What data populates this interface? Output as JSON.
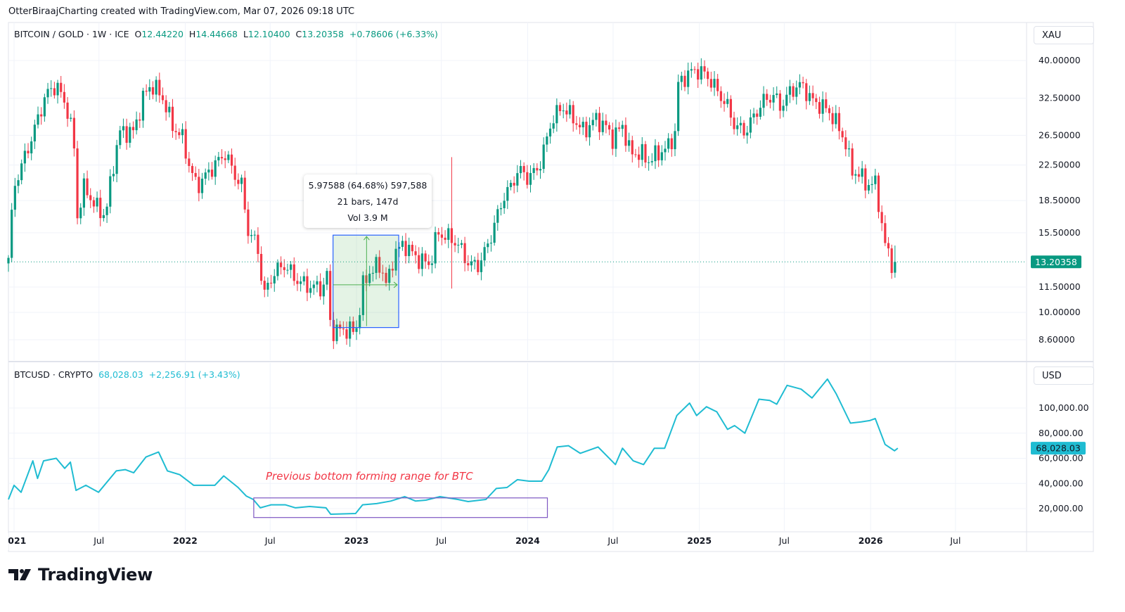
{
  "attribution": "OtterBiraajCharting created with TradingView.com, Mar 07, 2026 09:18 UTC",
  "main_pane": {
    "symbol": "BITCOIN / GOLD · 1W · ICE",
    "open_label": "O",
    "open": "12.44220",
    "high_label": "H",
    "high": "14.44668",
    "low_label": "L",
    "low": "12.10400",
    "close_label": "C",
    "close": "13.20358",
    "change": "+0.78606 (+6.33%)",
    "unit": "XAU",
    "last_price_label": "13.20358"
  },
  "sub_pane": {
    "symbol": "BTCUSD · CRYPTO",
    "value": "68,028.03",
    "change": "+2,256.91 (+3.43%)",
    "unit": "USD",
    "last_price_label": "68,028.03"
  },
  "measure_tooltip": {
    "line1": "5.97588 (64.68%) 597,588",
    "line2": "21 bars, 147d",
    "line3": "Vol 3.9 M"
  },
  "annotation": "Previous bottom forming range for BTC",
  "footer": {
    "brand": "TradingView"
  },
  "colors": {
    "up": "#089981",
    "down": "#f23645",
    "btc_line": "#1fbcd2",
    "measure_border": "#2962ff",
    "annotation_box": "#7e57c2"
  },
  "chart_data": [
    {
      "type": "candlestick",
      "title": "BITCOIN / GOLD · 1W · ICE",
      "scale": "log",
      "ylim": [
        8.2,
        42
      ],
      "y_ticks": [
        "40.00000",
        "32.50000",
        "26.50000",
        "22.50000",
        "18.50000",
        "15.50000",
        "11.50000",
        "10.00000",
        "8.60000"
      ],
      "last_bar": {
        "open": 12.4422,
        "high": 14.44668,
        "low": 12.104,
        "close": 13.20358
      },
      "close_path": [
        [
          "2020-12-20",
          13.5
        ],
        [
          "2021-01-01",
          20
        ],
        [
          "2021-02-07",
          26
        ],
        [
          "2021-03-09",
          33
        ],
        [
          "2021-04-01",
          35
        ],
        [
          "2021-04-23",
          31
        ],
        [
          "2021-05-08",
          26
        ],
        [
          "2021-05-16",
          17
        ],
        [
          "2021-05-31",
          20
        ],
        [
          "2021-06-22",
          18
        ],
        [
          "2021-07-15",
          17
        ],
        [
          "2021-07-30",
          22
        ],
        [
          "2021-08-14",
          27
        ],
        [
          "2021-09-13",
          27
        ],
        [
          "2021-10-05",
          33
        ],
        [
          "2021-10-20",
          35
        ],
        [
          "2021-11-12",
          33
        ],
        [
          "2021-12-04",
          28
        ],
        [
          "2021-12-27",
          26
        ],
        [
          "2022-01-11",
          22
        ],
        [
          "2022-01-26",
          20
        ],
        [
          "2022-02-25",
          22
        ],
        [
          "2022-03-27",
          24
        ],
        [
          "2022-04-19",
          21
        ],
        [
          "2022-05-04",
          20
        ],
        [
          "2022-05-11",
          16
        ],
        [
          "2022-06-03",
          14.5
        ],
        [
          "2022-06-18",
          11
        ],
        [
          "2022-07-10",
          12.5
        ],
        [
          "2022-08-02",
          13
        ],
        [
          "2022-08-24",
          12
        ],
        [
          "2022-09-23",
          11.5
        ],
        [
          "2022-10-23",
          11.5
        ],
        [
          "2022-10-31",
          12.5
        ],
        [
          "2022-11-07",
          9
        ],
        [
          "2022-12-07",
          9.1
        ],
        [
          "2022-12-30",
          9
        ],
        [
          "2023-01-07",
          10
        ],
        [
          "2023-01-14",
          11.5
        ],
        [
          "2023-01-29",
          12.5
        ],
        [
          "2023-02-21",
          13
        ],
        [
          "2023-03-08",
          11.5
        ],
        [
          "2023-03-23",
          14
        ],
        [
          "2023-04-15",
          14.5
        ],
        [
          "2023-05-08",
          13.5
        ],
        [
          "2023-06-07",
          13
        ],
        [
          "2023-06-22",
          15.5
        ],
        [
          "2023-07-22",
          15
        ],
        [
          "2023-08-06",
          14.5
        ],
        [
          "2023-08-29",
          13
        ],
        [
          "2023-09-20",
          13
        ],
        [
          "2023-10-13",
          15
        ],
        [
          "2023-10-28",
          17
        ],
        [
          "2023-11-12",
          19
        ],
        [
          "2023-11-27",
          20
        ],
        [
          "2023-12-12",
          22
        ],
        [
          "2024-01-01",
          21
        ],
        [
          "2024-01-23",
          22
        ],
        [
          "2024-02-07",
          25
        ],
        [
          "2024-02-22",
          29
        ],
        [
          "2024-03-16",
          31
        ],
        [
          "2024-04-08",
          29
        ],
        [
          "2024-04-30",
          27
        ],
        [
          "2024-05-23",
          29
        ],
        [
          "2024-06-14",
          28
        ],
        [
          "2024-06-29",
          26
        ],
        [
          "2024-07-22",
          28
        ],
        [
          "2024-08-06",
          24
        ],
        [
          "2024-08-29",
          24
        ],
        [
          "2024-09-13",
          23
        ],
        [
          "2024-10-06",
          24
        ],
        [
          "2024-10-29",
          25
        ],
        [
          "2024-11-10",
          27
        ],
        [
          "2024-11-16",
          35
        ],
        [
          "2024-12-06",
          37
        ],
        [
          "2024-12-24",
          38
        ],
        [
          "2025-01-16",
          37
        ],
        [
          "2025-02-07",
          34
        ],
        [
          "2025-03-02",
          31
        ],
        [
          "2025-03-17",
          28
        ],
        [
          "2025-04-09",
          27
        ],
        [
          "2025-04-24",
          29
        ],
        [
          "2025-05-17",
          32
        ],
        [
          "2025-06-08",
          33
        ],
        [
          "2025-06-23",
          31
        ],
        [
          "2025-07-16",
          34
        ],
        [
          "2025-08-07",
          35
        ],
        [
          "2025-08-30",
          32
        ],
        [
          "2025-09-22",
          31
        ],
        [
          "2025-10-07",
          30
        ],
        [
          "2025-10-22",
          28
        ],
        [
          "2025-11-06",
          26
        ],
        [
          "2025-11-21",
          22
        ],
        [
          "2025-12-13",
          21
        ],
        [
          "2025-12-30",
          20
        ],
        [
          "2026-01-14",
          20.5
        ],
        [
          "2026-01-21",
          17
        ],
        [
          "2026-02-01",
          14.5
        ],
        [
          "2026-02-13",
          13.5
        ],
        [
          "2026-02-20",
          12.4
        ],
        [
          "2026-02-28",
          13.20358
        ]
      ],
      "spike": {
        "date": "2023-07-23",
        "high": 23.5,
        "low": 11.4
      },
      "measure_range": {
        "from": "2022-11-12",
        "to": "2023-04-01",
        "high": 15.3,
        "low": 9.2
      }
    },
    {
      "type": "line",
      "title": "BTCUSD · CRYPTO",
      "scale": "linear",
      "y_ticks": [
        "100,000.00",
        "80,000.00",
        "60,000.00",
        "40,000.00",
        "20,000.00"
      ],
      "points": [
        [
          "2020-12-20",
          27300
        ],
        [
          "2021-01-01",
          38500
        ],
        [
          "2021-01-16",
          33000
        ],
        [
          "2021-02-10",
          58000
        ],
        [
          "2021-02-20",
          44000
        ],
        [
          "2021-03-05",
          58000
        ],
        [
          "2021-04-01",
          60000
        ],
        [
          "2021-04-19",
          52000
        ],
        [
          "2021-05-01",
          57000
        ],
        [
          "2021-05-13",
          34500
        ],
        [
          "2021-06-03",
          38500
        ],
        [
          "2021-06-30",
          33000
        ],
        [
          "2021-08-07",
          50000
        ],
        [
          "2021-08-26",
          51000
        ],
        [
          "2021-09-13",
          48500
        ],
        [
          "2021-10-09",
          61000
        ],
        [
          "2021-11-05",
          65000
        ],
        [
          "2021-11-24",
          50000
        ],
        [
          "2021-12-20",
          47000
        ],
        [
          "2022-01-19",
          38500
        ],
        [
          "2022-02-10",
          38500
        ],
        [
          "2022-03-05",
          38500
        ],
        [
          "2022-03-24",
          46000
        ],
        [
          "2022-04-23",
          37000
        ],
        [
          "2022-05-11",
          30000
        ],
        [
          "2022-05-26",
          27300
        ],
        [
          "2022-06-10",
          20600
        ],
        [
          "2022-07-03",
          23000
        ],
        [
          "2022-08-02",
          23000
        ],
        [
          "2022-08-24",
          20600
        ],
        [
          "2022-09-23",
          21700
        ],
        [
          "2022-10-28",
          20600
        ],
        [
          "2022-11-07",
          15500
        ],
        [
          "2022-12-30",
          16100
        ],
        [
          "2023-01-14",
          23000
        ],
        [
          "2023-02-13",
          24000
        ],
        [
          "2023-03-15",
          26000
        ],
        [
          "2023-04-14",
          29500
        ],
        [
          "2023-05-07",
          26000
        ],
        [
          "2023-05-29",
          26700
        ],
        [
          "2023-06-28",
          29500
        ],
        [
          "2023-08-05",
          27300
        ],
        [
          "2023-08-27",
          25600
        ],
        [
          "2023-10-04",
          27300
        ],
        [
          "2023-10-26",
          36000
        ],
        [
          "2023-11-18",
          36800
        ],
        [
          "2023-12-10",
          43000
        ],
        [
          "2024-01-04",
          41800
        ],
        [
          "2024-01-31",
          41800
        ],
        [
          "2024-02-15",
          51000
        ],
        [
          "2024-03-04",
          69000
        ],
        [
          "2024-03-28",
          70000
        ],
        [
          "2024-04-22",
          64000
        ],
        [
          "2024-05-30",
          69000
        ],
        [
          "2024-07-06",
          55000
        ],
        [
          "2024-07-21",
          68000
        ],
        [
          "2024-08-13",
          58000
        ],
        [
          "2024-09-04",
          55000
        ],
        [
          "2024-09-27",
          68000
        ],
        [
          "2024-10-19",
          68000
        ],
        [
          "2024-11-14",
          94000
        ],
        [
          "2024-12-11",
          103900
        ],
        [
          "2024-12-26",
          94000
        ],
        [
          "2025-01-16",
          101000
        ],
        [
          "2025-02-07",
          97000
        ],
        [
          "2025-03-02",
          83000
        ],
        [
          "2025-03-17",
          86000
        ],
        [
          "2025-04-08",
          80000
        ],
        [
          "2025-05-08",
          107000
        ],
        [
          "2025-05-31",
          106000
        ],
        [
          "2025-06-15",
          103000
        ],
        [
          "2025-07-07",
          118000
        ],
        [
          "2025-08-06",
          115000
        ],
        [
          "2025-08-29",
          108000
        ],
        [
          "2025-10-01",
          123000
        ],
        [
          "2025-10-20",
          111000
        ],
        [
          "2025-11-19",
          88000
        ],
        [
          "2025-12-12",
          89000
        ],
        [
          "2025-12-30",
          90000
        ],
        [
          "2026-01-11",
          91600
        ],
        [
          "2026-02-01",
          71000
        ],
        [
          "2026-02-21",
          66000
        ],
        [
          "2026-02-28",
          68028.03
        ]
      ],
      "annotation_range": {
        "from": "2022-05-27",
        "to": "2024-02-12",
        "high": 28500,
        "low": 12900
      }
    }
  ],
  "x_axis": {
    "ticks": [
      [
        "2021-01-01",
        "2021"
      ],
      [
        "2021-07-01",
        "Jul"
      ],
      [
        "2022-01-01",
        "2022"
      ],
      [
        "2022-07-01",
        "Jul"
      ],
      [
        "2023-01-01",
        "2023"
      ],
      [
        "2023-07-01",
        "Jul"
      ],
      [
        "2024-01-01",
        "2024"
      ],
      [
        "2024-07-01",
        "Jul"
      ],
      [
        "2025-01-01",
        "2025"
      ],
      [
        "2025-07-01",
        "Jul"
      ],
      [
        "2026-01-01",
        "2026"
      ],
      [
        "2026-07-01",
        "Jul"
      ]
    ]
  }
}
